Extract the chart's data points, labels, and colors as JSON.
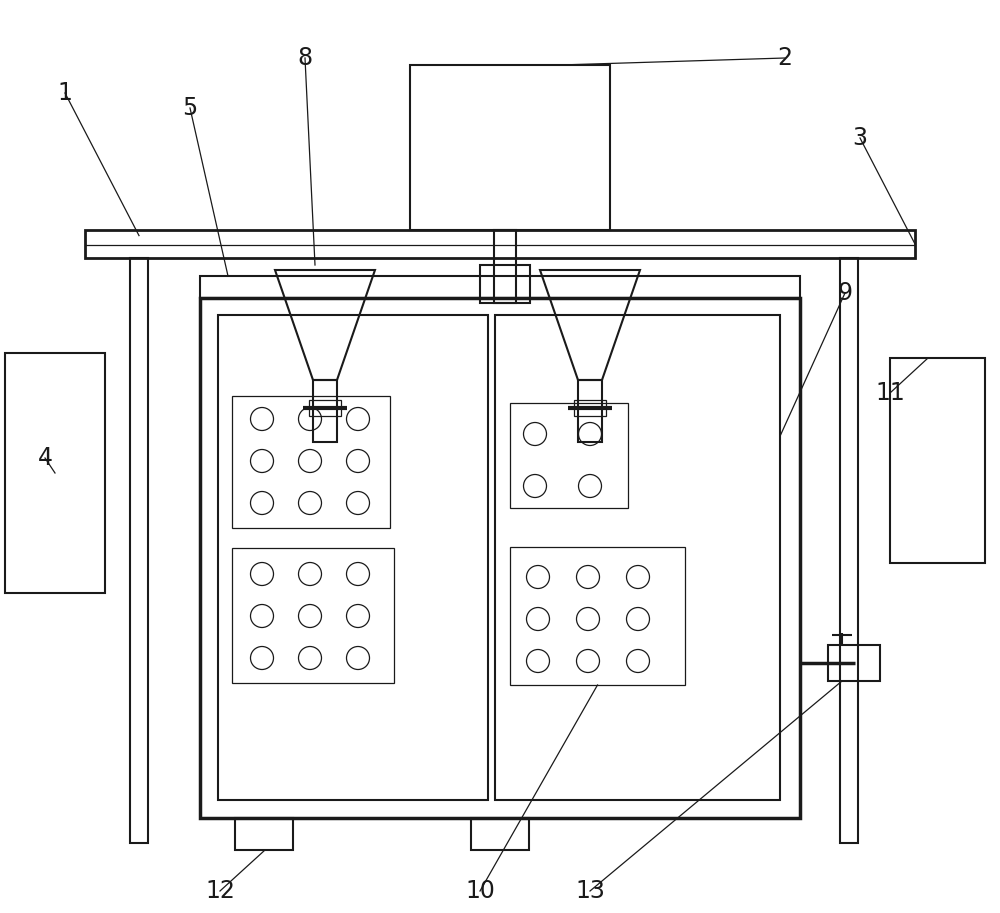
{
  "bg_color": "#ffffff",
  "line_color": "#1a1a1a",
  "line_width": 1.5,
  "thin_line": 0.9,
  "label_fontsize": 17
}
